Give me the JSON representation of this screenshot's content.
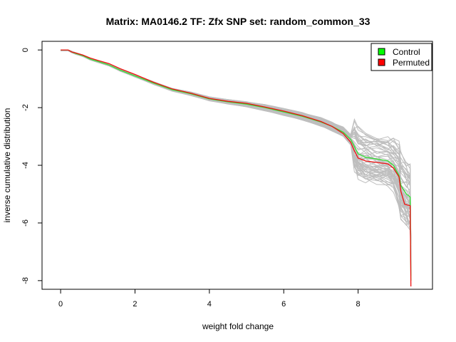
{
  "chart_data": {
    "type": "line",
    "title": "Matrix: MA0146.2 TF: Zfx SNP set: random_common_33",
    "xlabel": "weight fold change",
    "ylabel": "inverse cumulative distribution",
    "xlim": [
      -0.5,
      10.0
    ],
    "ylim": [
      -8.3,
      0.3
    ],
    "x_ticks": [
      0,
      2,
      4,
      6,
      8
    ],
    "y_ticks": [
      0,
      -2,
      -4,
      -6,
      -8
    ],
    "x_tick_labels": [
      "0",
      "2",
      "4",
      "6",
      "8"
    ],
    "y_tick_labels": [
      "0",
      "-2",
      "-4",
      "-6",
      "-8"
    ],
    "legend": {
      "position": "top-right",
      "entries": [
        {
          "label": "Control",
          "color": "#00ff00"
        },
        {
          "label": "Permuted",
          "color": "#ff0000"
        }
      ]
    },
    "background_lines_color": "#bebebe",
    "series": [
      {
        "name": "Control",
        "color": "#33dd33",
        "x": [
          0,
          0.2,
          0.3,
          0.4,
          0.6,
          0.8,
          1.0,
          1.3,
          1.6,
          2.0,
          2.5,
          3.0,
          3.5,
          4.0,
          4.5,
          5.0,
          5.5,
          6.0,
          6.5,
          7.0,
          7.3,
          7.6,
          7.8,
          7.9,
          8.0,
          8.2,
          8.5,
          8.8,
          8.95,
          9.1,
          9.15,
          9.3,
          9.4,
          9.42
        ],
        "y": [
          0,
          0,
          -0.07,
          -0.12,
          -0.2,
          -0.32,
          -0.4,
          -0.52,
          -0.7,
          -0.9,
          -1.15,
          -1.38,
          -1.52,
          -1.7,
          -1.8,
          -1.88,
          -2.0,
          -2.15,
          -2.3,
          -2.5,
          -2.65,
          -2.85,
          -3.1,
          -3.35,
          -3.6,
          -3.72,
          -3.78,
          -3.85,
          -4.0,
          -4.35,
          -4.7,
          -5.0,
          -5.1,
          -8.0
        ]
      },
      {
        "name": "Permuted",
        "color": "#ee1111",
        "x": [
          0,
          0.2,
          0.3,
          0.4,
          0.6,
          0.8,
          1.0,
          1.3,
          1.6,
          2.0,
          2.5,
          3.0,
          3.5,
          4.0,
          4.5,
          5.0,
          5.5,
          6.0,
          6.5,
          7.0,
          7.3,
          7.6,
          7.8,
          7.9,
          8.0,
          8.2,
          8.5,
          8.8,
          8.95,
          9.1,
          9.15,
          9.25,
          9.4,
          9.42
        ],
        "y": [
          0,
          0,
          -0.07,
          -0.1,
          -0.18,
          -0.28,
          -0.36,
          -0.47,
          -0.65,
          -0.85,
          -1.12,
          -1.35,
          -1.5,
          -1.68,
          -1.78,
          -1.85,
          -1.98,
          -2.12,
          -2.28,
          -2.48,
          -2.65,
          -2.9,
          -3.2,
          -3.5,
          -3.75,
          -3.85,
          -3.9,
          -3.95,
          -4.1,
          -4.4,
          -4.9,
          -5.35,
          -5.4,
          -8.2
        ]
      }
    ]
  }
}
